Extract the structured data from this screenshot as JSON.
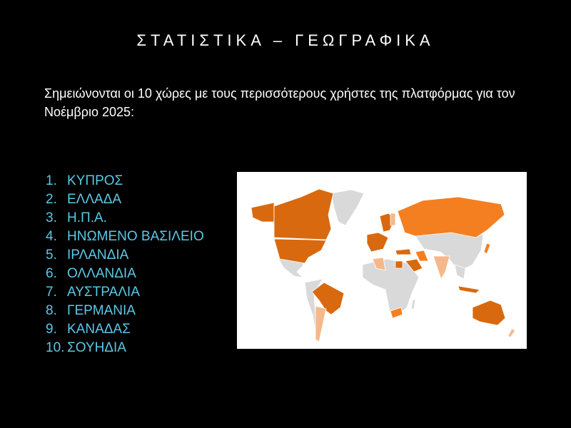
{
  "slide": {
    "title": "ΣΤΑΤΙΣΤΙΚΑ – ΓΕΩΓΡΑΦΙΚΑ",
    "intro": "Σημειώνονται οι 10 χώρες με τους περισσότερους χρήστες της πλατφόρμας για τον Νοέμβριο 2025:",
    "countries": [
      {
        "num": "1.",
        "name": "ΚΥΠΡΟΣ"
      },
      {
        "num": "2.",
        "name": "ΕΛΛΑΔΑ"
      },
      {
        "num": "3.",
        "name": "Η.Π.Α."
      },
      {
        "num": "4.",
        "name": "ΗΝΩΜΕΝΟ ΒΑΣΙΛΕΙΟ"
      },
      {
        "num": "5.",
        "name": "ΙΡΛΑΝΔΙΑ"
      },
      {
        "num": "6.",
        "name": "ΟΛΛΑΝΔΙΑ"
      },
      {
        "num": "7.",
        "name": "ΑΥΣΤΡΑΛΙΑ"
      },
      {
        "num": "8.",
        "name": "ΓΕΡΜΑΝΙΑ"
      },
      {
        "num": "9.",
        "name": "ΚΑΝΑΔΑΣ"
      },
      {
        "num": "10.",
        "name": "ΣΟΥΗΔΙΑ"
      }
    ]
  },
  "colors": {
    "list_text": "#5cc8e6",
    "map_high": "#d9690e",
    "map_mid": "#f47f20",
    "map_low": "#f6b88a",
    "map_none": "#d9d9d9"
  }
}
